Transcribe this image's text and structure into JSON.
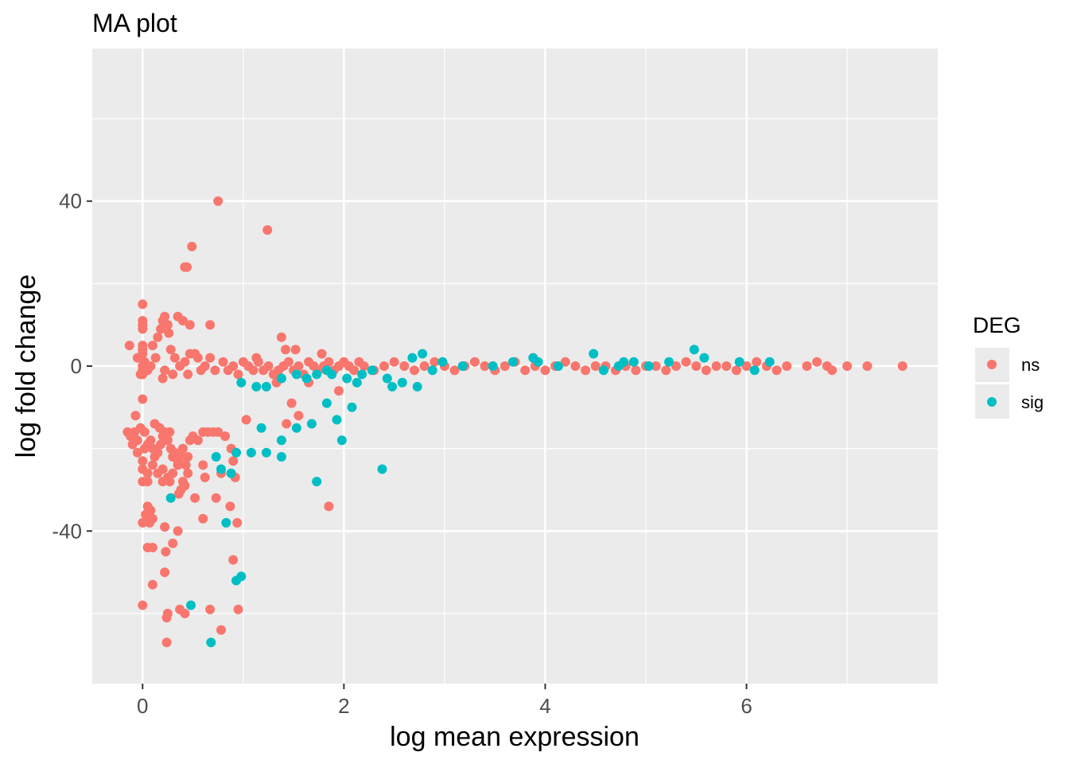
{
  "chart_data": {
    "type": "scatter",
    "title": "MA plot",
    "xlabel": "log mean expression",
    "ylabel": "log fold change",
    "xlim": [
      -0.5,
      7.9
    ],
    "ylim": [
      -77,
      77
    ],
    "x_ticks": [
      0,
      2,
      4,
      6
    ],
    "x_tick_labels": [
      "0",
      "2",
      "4",
      "6"
    ],
    "y_ticks": [
      -40,
      0,
      40
    ],
    "y_tick_labels": [
      "-40",
      "0",
      "40"
    ],
    "grid": true,
    "legend": {
      "title": "DEG",
      "position": "right",
      "entries": [
        "ns",
        "sig"
      ]
    },
    "colors": {
      "ns": "#F8766D",
      "sig": "#00BFC4",
      "panel": "#EBEBEB",
      "grid": "#FFFFFF"
    },
    "series": [
      {
        "name": "ns",
        "points": [
          [
            0.0,
            15
          ],
          [
            0.0,
            11
          ],
          [
            0.0,
            10
          ],
          [
            0.0,
            9
          ],
          [
            0.0,
            5
          ],
          [
            0.0,
            4
          ],
          [
            0.0,
            3
          ],
          [
            0.0,
            0
          ],
          [
            0.0,
            -1
          ],
          [
            0.0,
            -2
          ],
          [
            0.0,
            -8
          ],
          [
            -0.13,
            5
          ],
          [
            -0.05,
            2
          ],
          [
            0.02,
            1
          ],
          [
            0.05,
            -1
          ],
          [
            0.08,
            0
          ],
          [
            -0.02,
            -2
          ],
          [
            0.3,
            -2
          ],
          [
            0.22,
            -1
          ],
          [
            0.28,
            4
          ],
          [
            0.26,
            8
          ],
          [
            0.2,
            -3
          ],
          [
            0.32,
            2
          ],
          [
            0.35,
            12
          ],
          [
            0.4,
            11
          ],
          [
            0.22,
            12
          ],
          [
            0.2,
            11
          ],
          [
            0.18,
            9
          ],
          [
            0.25,
            10
          ],
          [
            0.15,
            7
          ],
          [
            0.1,
            5
          ],
          [
            0.13,
            2
          ],
          [
            0.37,
            0
          ],
          [
            0.42,
            1
          ],
          [
            0.47,
            3
          ],
          [
            0.52,
            3
          ],
          [
            0.55,
            2
          ],
          [
            0.58,
            -1
          ],
          [
            0.62,
            0
          ],
          [
            0.67,
            2
          ],
          [
            0.72,
            -1
          ],
          [
            0.45,
            -2
          ],
          [
            0.47,
            10
          ],
          [
            0.67,
            10
          ],
          [
            0.42,
            24
          ],
          [
            0.44,
            24
          ],
          [
            0.49,
            29
          ],
          [
            0.75,
            40
          ],
          [
            1.24,
            33
          ],
          [
            0.8,
            1
          ],
          [
            0.85,
            -1
          ],
          [
            0.9,
            0
          ],
          [
            0.95,
            -2
          ],
          [
            1.0,
            1
          ],
          [
            1.05,
            0
          ],
          [
            1.1,
            -1
          ],
          [
            1.15,
            1
          ],
          [
            1.2,
            -1
          ],
          [
            1.25,
            0
          ],
          [
            1.3,
            -2
          ],
          [
            1.35,
            -1
          ],
          [
            1.4,
            0
          ],
          [
            1.45,
            1
          ],
          [
            1.5,
            -1
          ],
          [
            1.55,
            0
          ],
          [
            1.6,
            -2
          ],
          [
            1.65,
            1
          ],
          [
            1.7,
            0
          ],
          [
            1.75,
            -1
          ],
          [
            1.8,
            0
          ],
          [
            1.85,
            1
          ],
          [
            1.9,
            -1
          ],
          [
            1.95,
            0
          ],
          [
            2.0,
            1
          ],
          [
            2.05,
            0
          ],
          [
            2.1,
            -1
          ],
          [
            2.15,
            1
          ],
          [
            2.2,
            0
          ],
          [
            2.3,
            -1
          ],
          [
            2.4,
            0
          ],
          [
            2.5,
            1
          ],
          [
            2.6,
            0
          ],
          [
            2.7,
            -1
          ],
          [
            2.8,
            0
          ],
          [
            2.9,
            1
          ],
          [
            3.0,
            0
          ],
          [
            3.1,
            -1
          ],
          [
            3.2,
            0
          ],
          [
            3.3,
            1
          ],
          [
            3.4,
            0
          ],
          [
            3.5,
            -1
          ],
          [
            3.6,
            0
          ],
          [
            3.7,
            1
          ],
          [
            3.8,
            -1
          ],
          [
            3.9,
            0
          ],
          [
            4.0,
            -1
          ],
          [
            4.1,
            0
          ],
          [
            4.2,
            1
          ],
          [
            4.3,
            0
          ],
          [
            4.4,
            -1
          ],
          [
            4.5,
            0
          ],
          [
            4.6,
            0
          ],
          [
            4.7,
            -1
          ],
          [
            4.8,
            0
          ],
          [
            4.9,
            -1
          ],
          [
            5.0,
            0
          ],
          [
            5.1,
            0
          ],
          [
            5.2,
            -1
          ],
          [
            5.3,
            0
          ],
          [
            5.4,
            1
          ],
          [
            5.5,
            0
          ],
          [
            5.6,
            -1
          ],
          [
            5.7,
            0
          ],
          [
            5.8,
            0
          ],
          [
            5.9,
            -1
          ],
          [
            6.0,
            0
          ],
          [
            6.1,
            1
          ],
          [
            6.2,
            0
          ],
          [
            6.3,
            -1
          ],
          [
            6.4,
            0
          ],
          [
            6.6,
            0
          ],
          [
            6.7,
            1
          ],
          [
            6.8,
            0
          ],
          [
            6.85,
            -1
          ],
          [
            7.0,
            0
          ],
          [
            7.2,
            0
          ],
          [
            7.55,
            0
          ],
          [
            1.38,
            7
          ],
          [
            1.42,
            4
          ],
          [
            1.52,
            4
          ],
          [
            1.78,
            3
          ],
          [
            1.13,
            2
          ],
          [
            1.33,
            -4
          ],
          [
            1.65,
            -4
          ],
          [
            1.95,
            -6
          ],
          [
            1.48,
            -9
          ],
          [
            1.55,
            -12
          ],
          [
            1.03,
            -13
          ],
          [
            1.43,
            -14
          ],
          [
            -0.15,
            -16
          ],
          [
            -0.12,
            -17
          ],
          [
            -0.08,
            -16
          ],
          [
            -0.05,
            -18
          ],
          [
            -0.02,
            -15
          ],
          [
            0.02,
            -16
          ],
          [
            -0.1,
            -19
          ],
          [
            -0.05,
            -21
          ],
          [
            0.0,
            -23
          ],
          [
            0.02,
            -20
          ],
          [
            0.05,
            -19
          ],
          [
            0.08,
            -18
          ],
          [
            0.1,
            -20
          ],
          [
            0.12,
            -22
          ],
          [
            0.15,
            -21
          ],
          [
            0.18,
            -19
          ],
          [
            0.2,
            -17
          ],
          [
            0.22,
            -16
          ],
          [
            0.25,
            -18
          ],
          [
            0.28,
            -20
          ],
          [
            0.3,
            -22
          ],
          [
            0.32,
            -21
          ],
          [
            0.35,
            -23
          ],
          [
            0.38,
            -22
          ],
          [
            0.4,
            -20
          ],
          [
            0.43,
            -24
          ],
          [
            0.45,
            -22
          ],
          [
            0.47,
            -18
          ],
          [
            0.5,
            -17
          ],
          [
            0.55,
            -18
          ],
          [
            0.6,
            -16
          ],
          [
            0.65,
            -16
          ],
          [
            0.7,
            -16
          ],
          [
            0.75,
            -16
          ],
          [
            0.82,
            -17
          ],
          [
            -0.07,
            -12
          ],
          [
            0.12,
            -14
          ],
          [
            0.17,
            -15
          ],
          [
            0.27,
            -16
          ],
          [
            0.0,
            -25
          ],
          [
            0.05,
            -26
          ],
          [
            0.1,
            -24
          ],
          [
            0.15,
            -26
          ],
          [
            0.2,
            -25
          ],
          [
            0.25,
            -27
          ],
          [
            0.3,
            -26
          ],
          [
            0.35,
            -24
          ],
          [
            0.4,
            -28
          ],
          [
            0.45,
            -26
          ],
          [
            0.0,
            -28
          ],
          [
            0.05,
            -28
          ],
          [
            0.2,
            -28
          ],
          [
            0.27,
            -28
          ],
          [
            0.38,
            -30
          ],
          [
            0.42,
            -29
          ],
          [
            0.6,
            -24
          ],
          [
            0.62,
            -27
          ],
          [
            0.78,
            -26
          ],
          [
            0.88,
            -20
          ],
          [
            0.9,
            -23
          ],
          [
            0.92,
            -27
          ],
          [
            0.36,
            -31
          ],
          [
            0.52,
            -32
          ],
          [
            0.73,
            -32
          ],
          [
            0.87,
            -34
          ],
          [
            0.05,
            -34
          ],
          [
            0.08,
            -35
          ],
          [
            0.03,
            -36
          ],
          [
            0.07,
            -38
          ],
          [
            0.0,
            -38
          ],
          [
            0.1,
            -37
          ],
          [
            0.22,
            -39
          ],
          [
            0.94,
            -38
          ],
          [
            1.85,
            -34
          ],
          [
            0.6,
            -37
          ],
          [
            0.35,
            -40
          ],
          [
            0.3,
            -43
          ],
          [
            0.05,
            -44
          ],
          [
            0.1,
            -44
          ],
          [
            0.23,
            -45
          ],
          [
            0.9,
            -47
          ],
          [
            0.22,
            -50
          ],
          [
            0.1,
            -53
          ],
          [
            0.0,
            -58
          ],
          [
            0.95,
            -59
          ],
          [
            0.37,
            -59
          ],
          [
            0.42,
            -60
          ],
          [
            0.25,
            -60
          ],
          [
            0.24,
            -61
          ],
          [
            0.67,
            -59
          ],
          [
            0.78,
            -64
          ],
          [
            0.24,
            -67
          ]
        ]
      },
      {
        "name": "sig",
        "points": [
          [
            0.98,
            -4
          ],
          [
            1.13,
            -5
          ],
          [
            1.23,
            -5
          ],
          [
            1.38,
            -3
          ],
          [
            1.53,
            -2
          ],
          [
            1.63,
            -3
          ],
          [
            1.73,
            -2
          ],
          [
            1.83,
            -1
          ],
          [
            1.88,
            -2
          ],
          [
            2.03,
            -3
          ],
          [
            2.13,
            -4
          ],
          [
            2.18,
            -2
          ],
          [
            2.28,
            -1
          ],
          [
            2.43,
            -3
          ],
          [
            2.48,
            -5
          ],
          [
            2.58,
            -4
          ],
          [
            2.68,
            2
          ],
          [
            2.73,
            -5
          ],
          [
            2.78,
            3
          ],
          [
            2.88,
            -1
          ],
          [
            2.98,
            1
          ],
          [
            3.18,
            0
          ],
          [
            3.48,
            0
          ],
          [
            3.68,
            1
          ],
          [
            3.88,
            2
          ],
          [
            3.93,
            1
          ],
          [
            4.13,
            0
          ],
          [
            4.48,
            3
          ],
          [
            4.58,
            -1
          ],
          [
            4.73,
            0
          ],
          [
            4.78,
            1
          ],
          [
            4.88,
            1
          ],
          [
            5.03,
            0
          ],
          [
            5.23,
            1
          ],
          [
            5.48,
            4
          ],
          [
            5.58,
            2
          ],
          [
            5.93,
            1
          ],
          [
            6.08,
            -1
          ],
          [
            6.23,
            1
          ],
          [
            1.83,
            -9
          ],
          [
            1.93,
            -13
          ],
          [
            1.68,
            -14
          ],
          [
            2.08,
            -10
          ],
          [
            1.98,
            -18
          ],
          [
            1.38,
            -18
          ],
          [
            1.18,
            -15
          ],
          [
            1.08,
            -21
          ],
          [
            1.23,
            -21
          ],
          [
            1.38,
            -22
          ],
          [
            1.53,
            -15
          ],
          [
            2.38,
            -25
          ],
          [
            1.73,
            -28
          ],
          [
            0.73,
            -22
          ],
          [
            0.78,
            -25
          ],
          [
            0.88,
            -26
          ],
          [
            0.93,
            -21
          ],
          [
            0.83,
            -38
          ],
          [
            0.28,
            -32
          ],
          [
            0.48,
            -58
          ],
          [
            0.68,
            -67
          ],
          [
            0.93,
            -52
          ],
          [
            0.98,
            -51
          ]
        ]
      }
    ]
  }
}
